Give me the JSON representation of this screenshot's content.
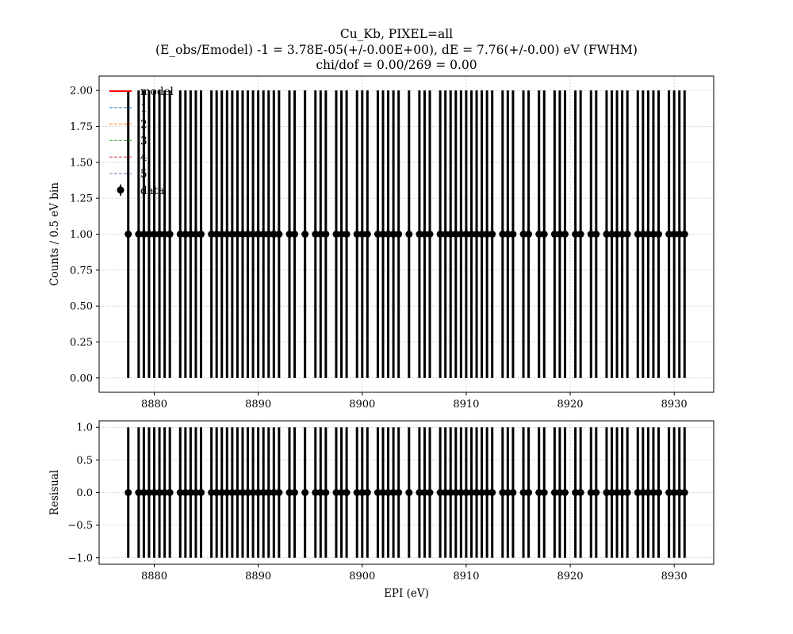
{
  "title": {
    "line1": "Cu_Kb, PIXEL=all",
    "line2": "(E_obs/Emodel) -1 = 3.78E-05(+/-0.00E+00), dE = 7.76(+/-0.00) eV (FWHM)",
    "line3": "chi/dof = 0.00/269 = 0.00"
  },
  "chart_data": [
    {
      "type": "scatter",
      "panel": "spectrum",
      "ylabel": "Counts / 0.5 eV bin",
      "xlim": [
        8874.7,
        8933.8
      ],
      "ylim": [
        -0.1,
        2.1
      ],
      "xticks": [
        8880,
        8890,
        8900,
        8910,
        8920,
        8930
      ],
      "xtick_labels": [
        "8880",
        "8890",
        "8900",
        "8910",
        "8920",
        "8930"
      ],
      "yticks": [
        0.0,
        0.25,
        0.5,
        0.75,
        1.0,
        1.25,
        1.5,
        1.75,
        2.0
      ],
      "ytick_labels": [
        "0.00",
        "0.25",
        "0.50",
        "0.75",
        "1.00",
        "1.25",
        "1.50",
        "1.75",
        "2.00"
      ],
      "grid": true,
      "legend": {
        "placement": "upper-left",
        "entries": [
          {
            "label": "model",
            "color": "#ff0000",
            "style": "solid"
          },
          {
            "label": "1",
            "color": "#1f77b4",
            "style": "dashed"
          },
          {
            "label": "2",
            "color": "#ff7f0e",
            "style": "dashed"
          },
          {
            "label": "3",
            "color": "#2ca02c",
            "style": "dashed"
          },
          {
            "label": "4",
            "color": "#d62728",
            "style": "dashed"
          },
          {
            "label": "5",
            "color": "#9467bd",
            "style": "dashed"
          },
          {
            "label": "data",
            "color": "#000000",
            "style": "errorbar"
          }
        ]
      },
      "data_series": {
        "name": "data",
        "y": 1,
        "yerr": 1,
        "x": [
          8877.5,
          8878.5,
          8879.0,
          8879.5,
          8880.0,
          8880.5,
          8881.0,
          8881.5,
          8882.5,
          8883.0,
          8883.5,
          8884.0,
          8884.5,
          8885.5,
          8886.0,
          8886.5,
          8887.0,
          8887.5,
          8888.0,
          8888.5,
          8889.0,
          8889.5,
          8890.0,
          8890.5,
          8891.0,
          8891.5,
          8892.0,
          8893.0,
          8893.5,
          8894.5,
          8895.5,
          8896.0,
          8896.5,
          8897.5,
          8898.0,
          8898.5,
          8899.5,
          8900.0,
          8900.5,
          8901.5,
          8902.0,
          8902.5,
          8903.0,
          8903.5,
          8904.5,
          8905.5,
          8906.0,
          8906.5,
          8907.5,
          8908.0,
          8908.5,
          8909.0,
          8909.5,
          8910.0,
          8910.5,
          8911.0,
          8911.5,
          8912.0,
          8912.5,
          8913.5,
          8914.0,
          8914.5,
          8915.5,
          8916.0,
          8917.0,
          8917.5,
          8918.5,
          8919.0,
          8919.5,
          8920.5,
          8921.0,
          8922.0,
          8922.5,
          8923.5,
          8924.0,
          8924.5,
          8925.0,
          8925.5,
          8926.5,
          8927.0,
          8927.5,
          8928.0,
          8928.5,
          8929.5,
          8930.0,
          8930.5,
          8931.0
        ]
      }
    },
    {
      "type": "scatter",
      "panel": "residual",
      "xlabel": "EPI (eV)",
      "ylabel": "Resisual",
      "xlim": [
        8874.7,
        8933.8
      ],
      "ylim": [
        -1.1,
        1.1
      ],
      "xticks": [
        8880,
        8890,
        8900,
        8910,
        8920,
        8930
      ],
      "xtick_labels": [
        "8880",
        "8890",
        "8900",
        "8910",
        "8920",
        "8930"
      ],
      "yticks": [
        -1.0,
        -0.5,
        0.0,
        0.5,
        1.0
      ],
      "ytick_labels": [
        "−1.0",
        "−0.5",
        "0.0",
        "0.5",
        "1.0"
      ],
      "grid": true,
      "residual_series": {
        "name": "residual",
        "y": 0,
        "yerr": 1,
        "x_same_as": "spectrum"
      }
    }
  ]
}
